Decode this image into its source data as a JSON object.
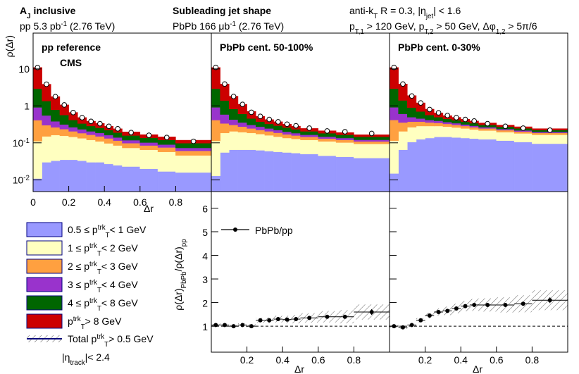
{
  "header": {
    "left": [
      [
        "A",
        {
          "text": "J",
          "shift": "sub"
        },
        " inclusive"
      ],
      [
        "pp 5.3 pb",
        {
          "text": "-1",
          "shift": "super"
        },
        " (2.76 TeV)"
      ]
    ],
    "middle": [
      [
        "Subleading jet shape"
      ],
      [
        "PbPb 166 μb",
        {
          "text": "-1",
          "shift": "super"
        },
        " (2.76 TeV)"
      ]
    ],
    "right": [
      [
        "anti-k",
        {
          "text": "T",
          "shift": "sub"
        },
        " R = 0.3, |η",
        {
          "text": "jet",
          "shift": "sub"
        },
        "| < 1.6"
      ],
      [
        "p",
        {
          "text": "T,1",
          "shift": "sub"
        },
        " > 120 GeV, p",
        {
          "text": "T,2",
          "shift": "sub"
        },
        " > 50 GeV, Δφ",
        {
          "text": "1,2",
          "shift": "sub"
        },
        " > 5π/6"
      ]
    ]
  },
  "chart_data": [
    {
      "type": "stacked_hist",
      "log": true,
      "ylabel": "ρ(Δr)",
      "xlabel": "Δr",
      "xlim": [
        0,
        1
      ],
      "xticks": [
        0,
        0.2,
        0.4,
        0.6,
        0.8
      ],
      "ylim": [
        0.0048,
        93
      ],
      "yticks": [
        {
          "value": 0.01,
          "label": [
            "10",
            {
              "text": "-2",
              "shift": "super"
            }
          ]
        },
        {
          "value": 0.1,
          "label": [
            "10",
            {
              "text": "-1",
              "shift": "super"
            }
          ]
        },
        1,
        10
      ],
      "bins": [
        0,
        0.05,
        0.1,
        0.15,
        0.2,
        0.25,
        0.3,
        0.35,
        0.4,
        0.45,
        0.5,
        0.6,
        0.7,
        0.8,
        1.0
      ],
      "components": [
        {
          "name": [
            "0.5 ≤ p",
            {
              "text": "trk",
              "shift": "super"
            },
            {
              "text": "T",
              "shift": "sub"
            },
            "< 1 GeV"
          ],
          "color": "#9999ff"
        },
        {
          "name": [
            "1 ≤ p",
            {
              "text": "trk",
              "shift": "super"
            },
            {
              "text": "T",
              "shift": "sub"
            },
            "< 2 GeV"
          ],
          "color": "#ffffc0"
        },
        {
          "name": [
            "2 ≤ p",
            {
              "text": "trk",
              "shift": "super"
            },
            {
              "text": "T",
              "shift": "sub"
            },
            "< 3 GeV"
          ],
          "color": "#ffa040"
        },
        {
          "name": [
            "3 ≤ p",
            {
              "text": "trk",
              "shift": "super"
            },
            {
              "text": "T",
              "shift": "sub"
            },
            "< 4 GeV"
          ],
          "color": "#9933cc"
        },
        {
          "name": [
            "4 ≤ p",
            {
              "text": "trk",
              "shift": "super"
            },
            {
              "text": "T",
              "shift": "sub"
            },
            "< 8 GeV"
          ],
          "color": "#006600"
        },
        {
          "name": [
            "p",
            {
              "text": "trk",
              "shift": "super"
            },
            {
              "text": "T",
              "shift": "sub"
            },
            "> 8 GeV"
          ],
          "color": "#cc0000"
        }
      ],
      "total_name": [
        "Total p",
        {
          "text": "trk",
          "shift": "super"
        },
        {
          "text": "T",
          "shift": "sub"
        },
        "> 0.5 GeV"
      ],
      "note": [
        "|η",
        {
          "text": "track",
          "shift": "sub"
        },
        "|< 2.4"
      ],
      "panels": [
        {
          "label": "pp reference",
          "sublabel": "CMS",
          "series": [
            [
              0.006,
              0.025,
              0.028,
              0.03,
              0.03,
              0.028,
              0.025,
              0.025,
              0.022,
              0.02,
              0.018,
              0.015,
              0.012,
              0.011
            ],
            [
              0.1,
              0.12,
              0.13,
              0.12,
              0.11,
              0.1,
              0.09,
              0.08,
              0.07,
              0.06,
              0.05,
              0.045,
              0.04,
              0.03
            ],
            [
              0.3,
              0.15,
              0.1,
              0.08,
              0.06,
              0.05,
              0.045,
              0.04,
              0.035,
              0.03,
              0.025,
              0.02,
              0.018,
              0.015
            ],
            [
              0.5,
              0.25,
              0.12,
              0.08,
              0.06,
              0.05,
              0.04,
              0.035,
              0.03,
              0.025,
              0.02,
              0.017,
              0.015,
              0.012
            ],
            [
              2,
              0.8,
              0.4,
              0.25,
              0.15,
              0.1,
              0.08,
              0.07,
              0.06,
              0.05,
              0.04,
              0.035,
              0.03,
              0.025
            ],
            [
              8,
              2.5,
              1,
              0.5,
              0.25,
              0.15,
              0.1,
              0.08,
              0.06,
              0.05,
              0.04,
              0.03,
              0.025,
              0.02
            ]
          ],
          "total": [
            10.9,
            3.85,
            1.78,
            1.06,
            0.66,
            0.48,
            0.38,
            0.33,
            0.28,
            0.24,
            0.19,
            0.16,
            0.14,
            0.11
          ]
        },
        {
          "label": "PbPb cent. 50-100%",
          "series": [
            [
              0.008,
              0.05,
              0.06,
              0.06,
              0.06,
              0.058,
              0.055,
              0.052,
              0.05,
              0.048,
              0.045,
              0.04,
              0.037,
              0.034
            ],
            [
              0.1,
              0.13,
              0.14,
              0.13,
              0.12,
              0.11,
              0.1,
              0.09,
              0.08,
              0.075,
              0.07,
              0.065,
              0.06,
              0.055
            ],
            [
              0.3,
              0.15,
              0.1,
              0.08,
              0.06,
              0.05,
              0.045,
              0.04,
              0.035,
              0.03,
              0.025,
              0.02,
              0.018,
              0.015
            ],
            [
              0.5,
              0.25,
              0.12,
              0.08,
              0.06,
              0.05,
              0.04,
              0.035,
              0.03,
              0.025,
              0.02,
              0.017,
              0.015,
              0.012
            ],
            [
              2,
              0.8,
              0.4,
              0.25,
              0.15,
              0.1,
              0.08,
              0.07,
              0.06,
              0.05,
              0.04,
              0.035,
              0.03,
              0.025
            ],
            [
              8,
              2.5,
              1,
              0.5,
              0.25,
              0.15,
              0.1,
              0.08,
              0.06,
              0.05,
              0.04,
              0.03,
              0.025,
              0.02
            ]
          ],
          "total": [
            11,
            3.9,
            1.8,
            1.1,
            0.67,
            0.52,
            0.43,
            0.37,
            0.32,
            0.29,
            0.25,
            0.21,
            0.2,
            0.18
          ]
        },
        {
          "label": "PbPb cent. 0-30%",
          "series": [
            [
              0.01,
              0.06,
              0.1,
              0.12,
              0.13,
              0.14,
              0.14,
              0.135,
              0.13,
              0.125,
              0.12,
              0.11,
              0.1,
              0.09
            ],
            [
              0.1,
              0.14,
              0.16,
              0.16,
              0.15,
              0.14,
              0.13,
              0.12,
              0.11,
              0.1,
              0.09,
              0.08,
              0.075,
              0.07
            ],
            [
              0.3,
              0.15,
              0.11,
              0.09,
              0.07,
              0.06,
              0.05,
              0.045,
              0.04,
              0.035,
              0.03,
              0.025,
              0.022,
              0.02
            ],
            [
              0.5,
              0.25,
              0.12,
              0.08,
              0.06,
              0.05,
              0.04,
              0.035,
              0.03,
              0.025,
              0.02,
              0.017,
              0.015,
              0.012
            ],
            [
              2,
              0.8,
              0.4,
              0.25,
              0.15,
              0.1,
              0.08,
              0.07,
              0.06,
              0.05,
              0.04,
              0.035,
              0.03,
              0.025
            ],
            [
              8,
              2.5,
              1,
              0.5,
              0.25,
              0.15,
              0.1,
              0.08,
              0.06,
              0.05,
              0.04,
              0.03,
              0.025,
              0.02
            ]
          ],
          "total": [
            11,
            3.9,
            1.85,
            1.2,
            0.8,
            0.65,
            0.55,
            0.48,
            0.43,
            0.39,
            0.33,
            0.28,
            0.25,
            0.22
          ]
        }
      ]
    },
    {
      "type": "ratio",
      "ylabel": [
        "ρ(Δr)",
        {
          "text": "PbPb",
          "shift": "sub"
        },
        "/ρ(Δr)",
        {
          "text": "pp",
          "shift": "sub"
        }
      ],
      "xlabel": "Δr",
      "legend": "PbPb/pp",
      "xlim": [
        0,
        1
      ],
      "xticks": [
        0.2,
        0.4,
        0.6,
        0.8
      ],
      "ylim": [
        -0.1,
        6.7
      ],
      "yticks": [
        1,
        2,
        3,
        4,
        5,
        6
      ],
      "ref": 1,
      "bins": [
        0,
        0.05,
        0.1,
        0.15,
        0.2,
        0.25,
        0.3,
        0.35,
        0.4,
        0.45,
        0.5,
        0.6,
        0.7,
        0.8,
        1.0
      ],
      "panels": [
        {
          "values": [
            1.05,
            1.05,
            1.0,
            1.05,
            1.0,
            1.25,
            1.25,
            1.3,
            1.28,
            1.3,
            1.35,
            1.4,
            1.4,
            1.6
          ],
          "errors": [
            0.04,
            0.03,
            0.03,
            0.03,
            0.03,
            0.03,
            0.03,
            0.04,
            0.04,
            0.04,
            0.05,
            0.06,
            0.07,
            0.12
          ],
          "syst": [
            0.06,
            0.06,
            0.06,
            0.07,
            0.08,
            0.1,
            0.12,
            0.14,
            0.16,
            0.18,
            0.2,
            0.24,
            0.28,
            0.32
          ]
        },
        {
          "values": [
            1.0,
            0.95,
            1.05,
            1.25,
            1.45,
            1.6,
            1.65,
            1.75,
            1.85,
            1.9,
            1.9,
            1.9,
            1.95,
            2.1
          ],
          "errors": [
            0.04,
            0.03,
            0.03,
            0.03,
            0.03,
            0.03,
            0.04,
            0.04,
            0.04,
            0.05,
            0.05,
            0.06,
            0.07,
            0.12
          ],
          "syst": [
            0.06,
            0.06,
            0.07,
            0.09,
            0.12,
            0.15,
            0.18,
            0.2,
            0.22,
            0.25,
            0.28,
            0.32,
            0.36,
            0.42
          ]
        }
      ]
    }
  ]
}
